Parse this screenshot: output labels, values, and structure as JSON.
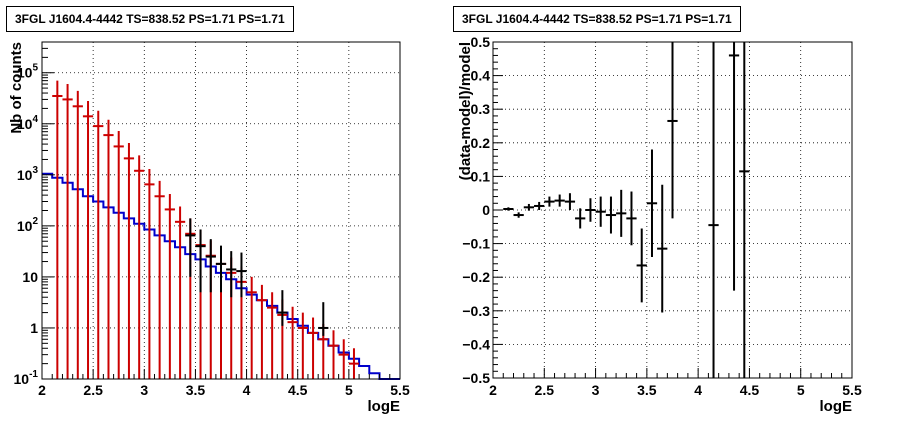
{
  "chart_data": [
    {
      "type": "line",
      "title": "3FGL J1604.4-4442 TS=838.52 PS=1.71 PS=1.71",
      "xlabel": "logE",
      "ylabel": "Nb of counts",
      "xlim": [
        2,
        5.5
      ],
      "ylim": [
        0.1,
        400000
      ],
      "log_y": true,
      "grid": true,
      "x_ticks": [
        "2",
        "2.5",
        "3",
        "3.5",
        "4",
        "4.5",
        "5",
        "5.5"
      ],
      "y_ticks": [
        "10^-1",
        "1",
        "10",
        "10^2",
        "10^3",
        "10^4",
        "10^5"
      ],
      "bin_edges": [
        2.0,
        2.1,
        2.2,
        2.3,
        2.4,
        2.5,
        2.6,
        2.7,
        2.8,
        2.9,
        3.0,
        3.1,
        3.2,
        3.3,
        3.4,
        3.5,
        3.6,
        3.7,
        3.8,
        3.9,
        4.0,
        4.1,
        4.2,
        4.3,
        4.4,
        4.5,
        4.6,
        4.7,
        4.8,
        4.9,
        5.0,
        5.1,
        5.2,
        5.3,
        5.4,
        5.5
      ],
      "series": [
        {
          "name": "",
          "color": "#0000cc",
          "style": "step",
          "values": [
            1050,
            880,
            700,
            520,
            380,
            300,
            230,
            180,
            140,
            110,
            85,
            65,
            50,
            38,
            28,
            22,
            16,
            12,
            9,
            6,
            4.5,
            3.5,
            2.7,
            2.0,
            1.5,
            1.1,
            0.8,
            0.6,
            0.45,
            0.33,
            0.25,
            0.18,
            0.13,
            0.1,
            0.1
          ]
        },
        {
          "name": "",
          "color": "#cc0000",
          "style": "error_bars",
          "x": [
            2.15,
            2.25,
            2.35,
            2.45,
            2.55,
            2.65,
            2.75,
            2.85,
            2.95,
            3.05,
            3.15,
            3.25,
            3.35,
            3.45,
            3.55,
            3.65,
            3.75,
            3.85,
            3.95,
            4.05,
            4.15,
            4.25,
            4.35,
            4.45,
            4.55,
            4.65,
            4.75,
            4.85,
            4.95,
            5.05
          ],
          "y": [
            35000,
            30000,
            22000,
            14000,
            9000,
            6000,
            3600,
            2100,
            1200,
            650,
            380,
            210,
            120,
            70,
            42,
            26,
            18,
            12,
            8,
            5,
            3.5,
            2.5,
            1.8,
            1.3,
            1.0,
            0.8,
            0.6,
            0.45,
            0.3,
            0.2
          ],
          "yerr_low": [
            35000,
            30000,
            22000,
            14000,
            9000,
            6000,
            3600,
            2100,
            1200,
            650,
            380,
            210,
            120,
            70,
            42,
            26,
            18,
            12,
            8,
            5,
            3.5,
            2.5,
            1.8,
            1.3,
            1.0,
            0.8,
            0.6,
            0.45,
            0.3,
            0.2
          ],
          "yerr_high": [
            35000,
            30000,
            22000,
            14000,
            9000,
            6000,
            3600,
            2100,
            1200,
            650,
            380,
            210,
            120,
            70,
            42,
            26,
            18,
            12,
            8,
            5,
            3.5,
            2.5,
            1.8,
            1.3,
            1.0,
            0.8,
            0.6,
            0.45,
            0.3,
            0.2
          ]
        },
        {
          "name": "",
          "color": "#000000",
          "style": "error_bars",
          "x": [
            3.45,
            3.55,
            3.65,
            3.75,
            3.85,
            3.95,
            4.35,
            4.75
          ],
          "y": [
            65,
            40,
            25,
            18,
            14,
            13,
            2,
            1
          ],
          "yerr_low": [
            55,
            35,
            20,
            13,
            10,
            9,
            0.9,
            0.3
          ],
          "yerr_high": [
            75,
            45,
            30,
            23,
            18,
            17,
            3.5,
            2.2
          ]
        }
      ]
    },
    {
      "type": "scatter",
      "title": "3FGL J1604.4-4442 TS=838.52 PS=1.71 PS=1.71",
      "xlabel": "logE",
      "ylabel": "(data-model)/model",
      "xlim": [
        2,
        5.5
      ],
      "ylim": [
        -0.5,
        0.5
      ],
      "grid": true,
      "x_ticks": [
        "2",
        "2.5",
        "3",
        "3.5",
        "4",
        "4.5",
        "5",
        "5.5"
      ],
      "y_ticks": [
        "−0.5",
        "−0.4",
        "−0.3",
        "−0.2",
        "−0.1",
        "0",
        "0.1",
        "0.2",
        "0.3",
        "0.4",
        "0.5"
      ],
      "series": [
        {
          "name": "",
          "color": "#000000",
          "style": "error_bars",
          "x": [
            2.15,
            2.25,
            2.35,
            2.45,
            2.55,
            2.65,
            2.75,
            2.85,
            2.95,
            3.05,
            3.15,
            3.25,
            3.35,
            3.45,
            3.55,
            3.65,
            3.75,
            4.15,
            4.35,
            4.45
          ],
          "y": [
            0.003,
            -0.015,
            0.008,
            0.012,
            0.025,
            0.028,
            0.025,
            -0.025,
            0.0,
            -0.005,
            -0.015,
            -0.01,
            -0.025,
            -0.165,
            0.02,
            -0.115,
            0.265,
            -0.045,
            0.46,
            0.115
          ],
          "yerr": [
            0.005,
            0.008,
            0.01,
            0.012,
            0.015,
            0.018,
            0.025,
            0.03,
            0.035,
            0.045,
            0.055,
            0.07,
            0.08,
            0.11,
            0.16,
            0.19,
            0.29,
            0.6,
            0.7,
            0.7
          ]
        }
      ]
    }
  ]
}
